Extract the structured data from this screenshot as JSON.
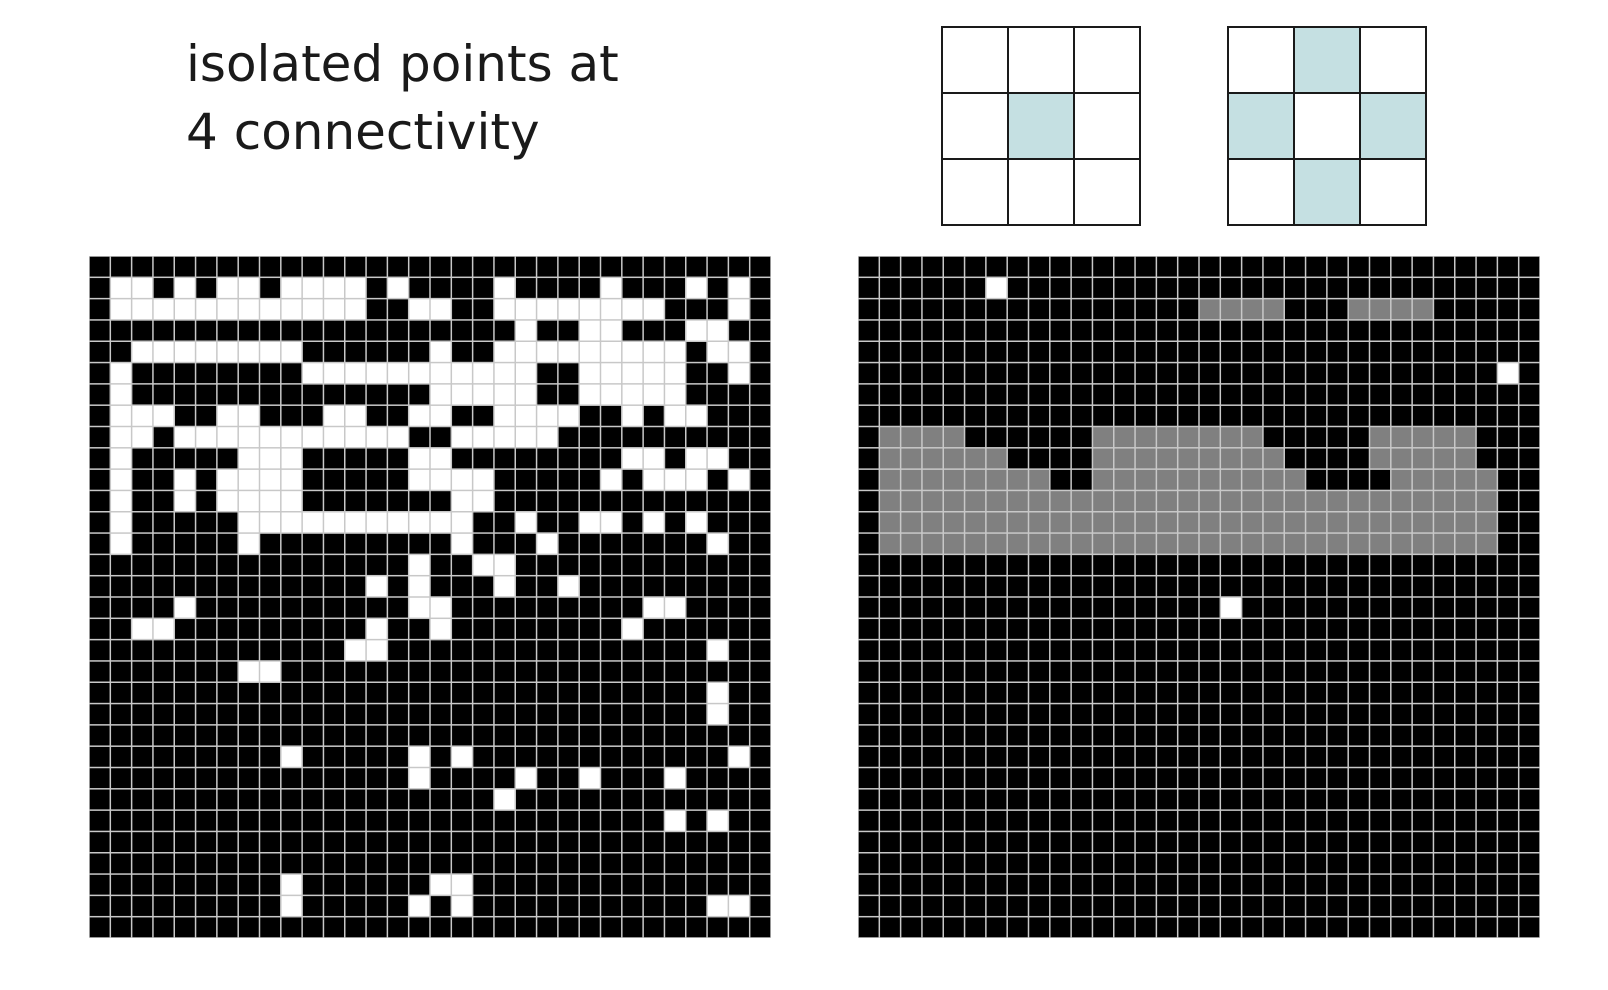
{
  "title": {
    "line1": "isolated points at",
    "line2": "4 connectivity"
  },
  "colors": {
    "foreground": "#000000",
    "background": "#ffffff",
    "highlight": "#808080",
    "kernel_fill": "#c5e0e2",
    "grid_line": "#c8c8c8"
  },
  "kernels": {
    "center": [
      [
        0,
        0,
        0
      ],
      [
        0,
        1,
        0
      ],
      [
        0,
        0,
        0
      ]
    ],
    "cross": [
      [
        0,
        1,
        0
      ],
      [
        1,
        0,
        1
      ],
      [
        0,
        1,
        0
      ]
    ]
  },
  "grid_size": 32,
  "left_grid": [
    "11111111111111111111111111111111",
    "10010100100001011110111101110101",
    "10000000000001100110000000011101",
    "11111111111111111111011001110011",
    "11000000001111110110000000001001",
    "10111111110000000000011000001101",
    "10111111111111110000011000001111",
    "10001100111001100110000110100111",
    "10010000000000011000001111111111",
    "10111110001111100111111110010011",
    "10110100001111100001111101000101",
    "10110100001111111001111111111111",
    "10111110000000000011011001010111",
    "10111110111111111011101111111011",
    "11111111111111101100111111111111",
    "11111111111110101110110111111111",
    "11110111111111100111111111001111",
    "11001111111110110111111110111111",
    "11111111111100111111111111111011",
    "11111110011111111111111111111111",
    "11111111111111111111111111111011",
    "11111111111111111111111111111011",
    "11111111111111111111111111111111",
    "11111111101111101011111111111101",
    "11111111111111101111011011101111",
    "11111111111111111110111111111111",
    "11111111111111111111111111101011",
    "11111111111111111111111111111111",
    "11111111111111111111111111111111",
    "11111111101111110011111111111111",
    "11111111101111101011111111111001",
    "11111111111111111111111111111111"
  ],
  "right_grid": [
    "11111111111111111111111111111111",
    "11111101111111111111111111111111",
    "11111111111111112222111222211111",
    "11111111111111111111111111111111",
    "11111111111111111111111111111111",
    "11111111111111111111111111111101",
    "11111111111111111111111111111111",
    "11111111111111111111111111111111",
    "12222111111222222221111122222111",
    "12222221111222222222111122222111",
    "12222222211222222222211112222211",
    "12222222222222222222222222222211",
    "12222222222222222222222222222211",
    "12222222222222222222222222222211",
    "11111111111111111111111111111111",
    "11111111111111111111111111111111",
    "11111111111111111011111111111111",
    "11111111111111111111111111111111",
    "11111111111111111111111111111111",
    "11111111111111111111111111111111",
    "11111111111111111111111111111111",
    "11111111111111111111111111111111",
    "11111111111111111111111111111111",
    "11111111111111111111111111111111",
    "11111111111111111111111111111111",
    "11111111111111111111111111111111",
    "11111111111111111111111111111111",
    "11111111111111111111111111111111",
    "11111111111111111111111111111111",
    "11111111111111111111111111111111",
    "11111111111111111111111111111111",
    "11111111111111111111111111111111"
  ]
}
